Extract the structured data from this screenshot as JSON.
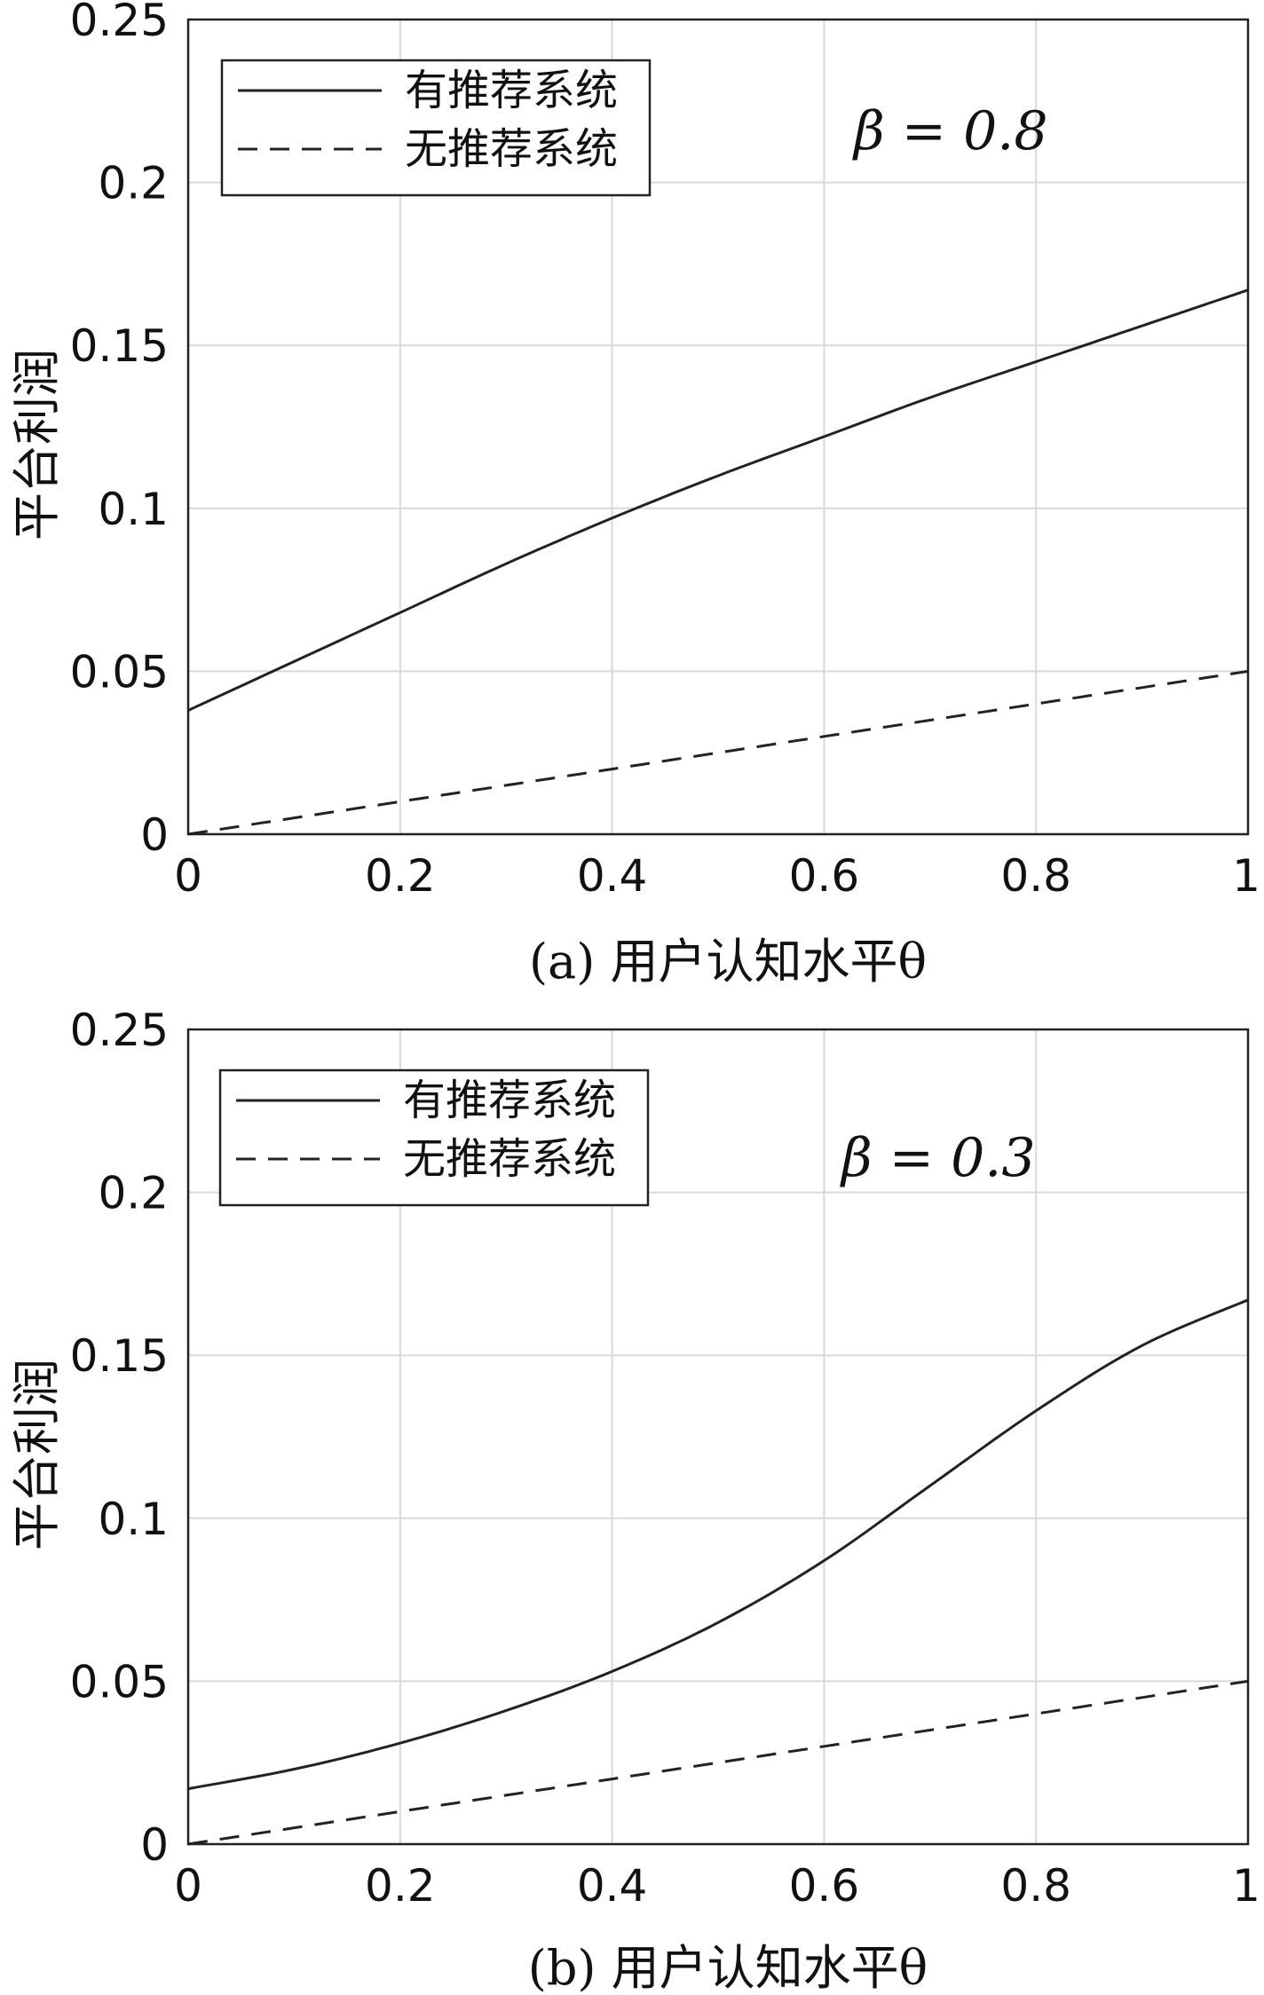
{
  "chart_data": [
    {
      "type": "line",
      "panel_caption": "(a) 用户认知水平θ",
      "ylabel": "平台利润",
      "annotation": "β = 0.8",
      "xlim": [
        0,
        1
      ],
      "ylim": [
        0,
        0.25
      ],
      "xticks": [
        "0",
        "0.2",
        "0.4",
        "0.6",
        "0.8",
        "1"
      ],
      "yticks": [
        "0",
        "0.05",
        "0.1",
        "0.15",
        "0.2",
        "0.25"
      ],
      "grid": true,
      "legend_position": "top-left",
      "x": [
        0,
        0.1,
        0.2,
        0.3,
        0.4,
        0.5,
        0.6,
        0.7,
        0.8,
        0.9,
        1.0
      ],
      "series": [
        {
          "name": "有推荐系统",
          "style": "solid",
          "values": [
            0.038,
            0.053,
            0.068,
            0.083,
            0.097,
            0.11,
            0.122,
            0.134,
            0.145,
            0.156,
            0.167
          ]
        },
        {
          "name": "无推荐系统",
          "style": "dashed",
          "values": [
            0,
            0.005,
            0.01,
            0.015,
            0.02,
            0.025,
            0.03,
            0.035,
            0.04,
            0.045,
            0.05
          ]
        }
      ]
    },
    {
      "type": "line",
      "panel_caption": "(b) 用户认知水平θ",
      "ylabel": "平台利润",
      "annotation": "β = 0.3",
      "xlim": [
        0,
        1
      ],
      "ylim": [
        0,
        0.25
      ],
      "xticks": [
        "0",
        "0.2",
        "0.4",
        "0.6",
        "0.8",
        "1"
      ],
      "yticks": [
        "0",
        "0.05",
        "0.1",
        "0.15",
        "0.2",
        "0.25"
      ],
      "grid": true,
      "legend_position": "top-left",
      "x": [
        0,
        0.1,
        0.2,
        0.3,
        0.4,
        0.5,
        0.6,
        0.7,
        0.8,
        0.9,
        1.0
      ],
      "series": [
        {
          "name": "有推荐系统",
          "style": "solid",
          "values": [
            0.017,
            0.023,
            0.031,
            0.041,
            0.053,
            0.068,
            0.087,
            0.11,
            0.133,
            0.153,
            0.167
          ]
        },
        {
          "name": "无推荐系统",
          "style": "dashed",
          "values": [
            0,
            0.005,
            0.01,
            0.015,
            0.02,
            0.025,
            0.03,
            0.035,
            0.04,
            0.045,
            0.05
          ]
        }
      ]
    }
  ]
}
